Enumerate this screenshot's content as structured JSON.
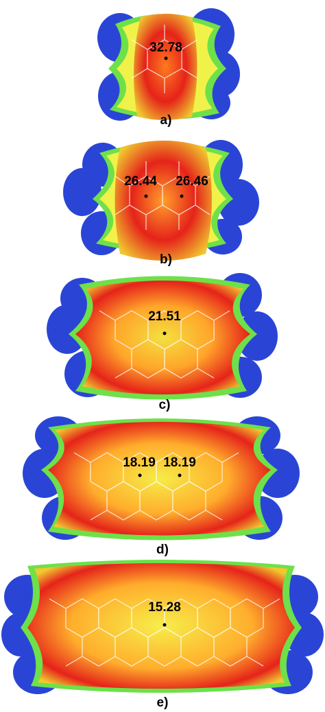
{
  "figure": {
    "panels": [
      {
        "label": "a)",
        "values": [
          "32.78"
        ]
      },
      {
        "label": "b)",
        "values": [
          "26.44",
          "26.46"
        ]
      },
      {
        "label": "c)",
        "values": [
          "21.51"
        ]
      },
      {
        "label": "d)",
        "values": [
          "18.19",
          "18.19"
        ]
      },
      {
        "label": "e)",
        "values": [
          "15.28"
        ]
      }
    ]
  },
  "colors": {
    "negative": "#2a45d6",
    "boundary_green": "#6ee04a",
    "mid_yellow": "#f0f24a",
    "high_orange": "#ff9f2a",
    "max_red": "#e5231a",
    "bond_line": "#ffffff"
  }
}
